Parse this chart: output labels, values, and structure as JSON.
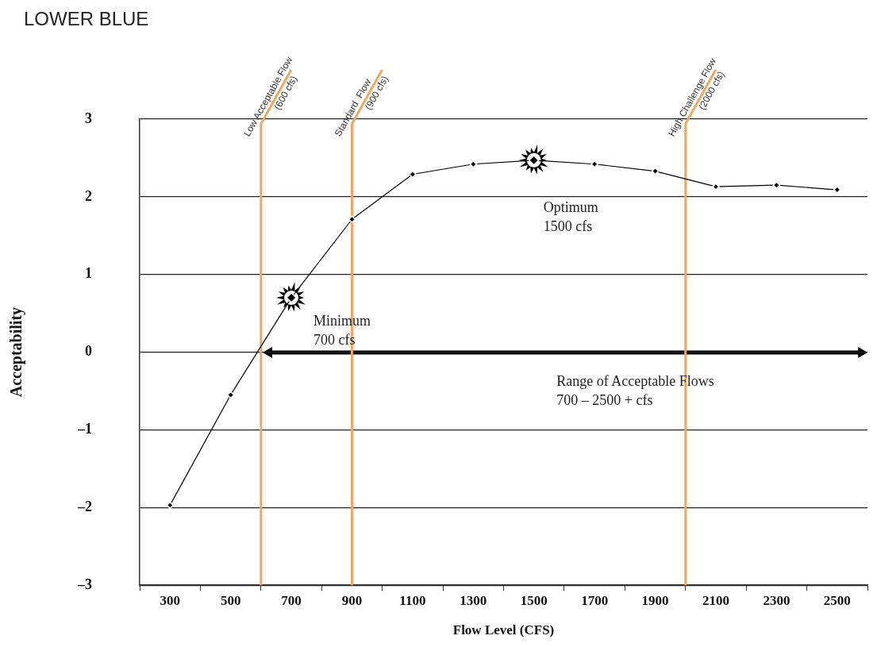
{
  "chart_data": {
    "type": "line",
    "title": "LOWER BLUE",
    "xlabel": "Flow Level (CFS)",
    "ylabel": "Acceptability",
    "x": [
      300,
      500,
      700,
      900,
      1100,
      1300,
      1500,
      1700,
      1900,
      2100,
      2300,
      2500
    ],
    "series": [
      {
        "color": "#000000",
        "values": [
          -1.97,
          -0.55,
          0.7,
          1.71,
          2.29,
          2.42,
          2.47,
          2.42,
          2.33,
          2.13,
          2.15,
          2.09
        ]
      }
    ],
    "xlim": [
      200,
      2600
    ],
    "xticks": [
      {
        "value": 200,
        "label": null
      },
      300,
      {
        "value": 400,
        "label": null
      },
      500,
      {
        "value": 600,
        "label": null
      },
      700,
      {
        "value": 800,
        "label": null
      },
      900,
      {
        "value": 1000,
        "label": null
      },
      1100,
      {
        "value": 1200,
        "label": null
      },
      1300,
      {
        "value": 1400,
        "label": null
      },
      1500,
      {
        "value": 1600,
        "label": null
      },
      1700,
      {
        "value": 1800,
        "label": null
      },
      1900,
      {
        "value": 2000,
        "label": null
      },
      2100,
      {
        "value": 2200,
        "label": null
      },
      2300,
      {
        "value": 2400,
        "label": null
      },
      2500,
      {
        "value": 2600,
        "label": null
      }
    ],
    "ylim": [
      -3,
      3
    ],
    "yticks": [
      {
        "value": -3,
        "label": "–3"
      },
      {
        "value": -2,
        "label": "–2"
      },
      {
        "value": -1,
        "label": "–1"
      },
      0,
      1,
      2,
      3
    ],
    "grid": "y",
    "legend": false,
    "marker": "diamond",
    "line_style": "solid",
    "ref_lines": [
      {
        "axis": "x",
        "value": 600,
        "label": "Low Acceptable Flow\n(600 cfs)",
        "color": "#f0a860"
      },
      {
        "axis": "x",
        "value": 900,
        "label": "Standard  Flow\n(900 cfs)",
        "color": "#f0a860"
      },
      {
        "axis": "x",
        "value": 2000,
        "label": "High Challenge Flow\n(2000 cfs)",
        "color": "#f0a860"
      }
    ],
    "annotations": [
      {
        "text": "Minimum\n700 cfs",
        "x": 700,
        "y": 0.7
      },
      {
        "text": "Optimum\n1500 cfs",
        "x": 1500,
        "y": 2.47
      },
      "Range of Acceptable Flows\n700 – 2500 + cfs"
    ]
  }
}
